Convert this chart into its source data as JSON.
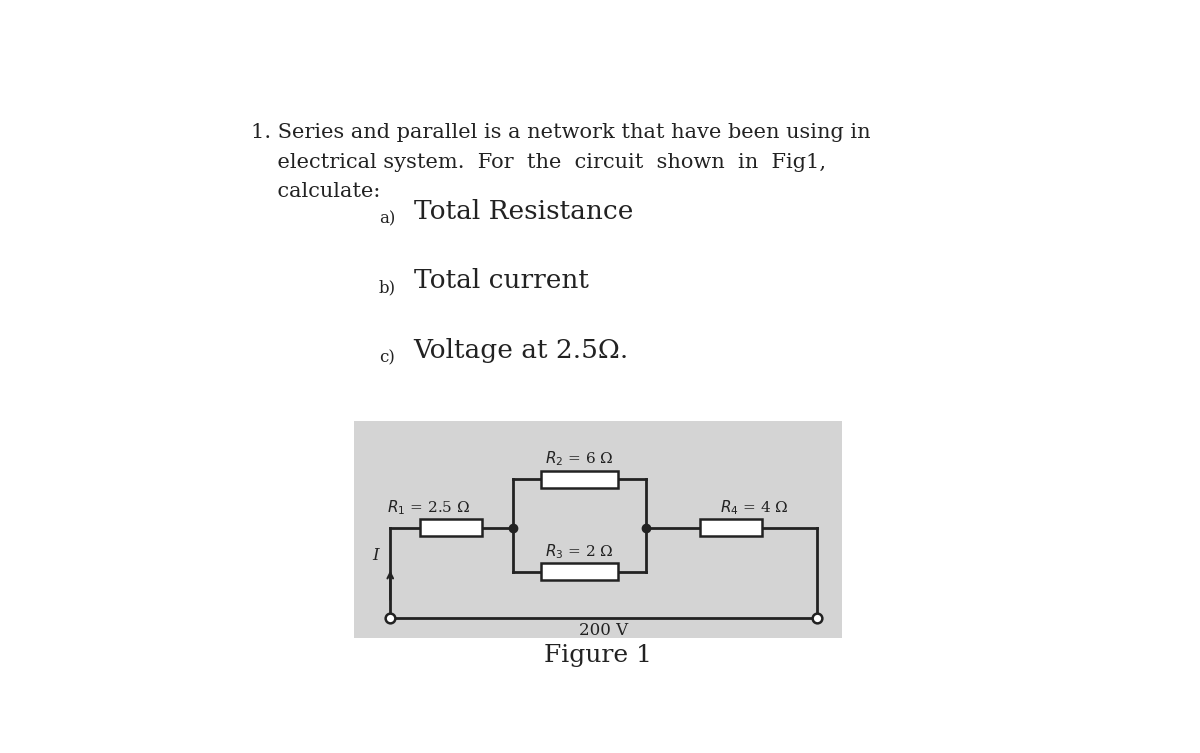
{
  "bg_color": "#ffffff",
  "circuit_bg": "#d4d4d4",
  "text_color": "#222222",
  "line_color": "#222222",
  "resistor_fill": "#ffffff",
  "resistor_edge": "#222222",
  "para_line1": "1. Series and parallel is a network that have been using in",
  "para_line2": "    electrical system.  For  the  circuit  shown  in  Fig1,",
  "para_line3": "    calculate:",
  "label_a_sub": "a)",
  "label_a_main": "Total Resistance",
  "label_b_sub": "b)",
  "label_b_main": "Total current",
  "label_c_sub": "c)",
  "label_c_main": "Voltage at 2.5Ω.",
  "figure_label": "Figure 1",
  "R1_label": "$\\mathit{R}_1$ = 2.5 Ω",
  "R2_label": "$\\mathit{R}_2$ = 6 Ω",
  "R3_label": "$\\mathit{R}_3$ = 2 Ω",
  "R4_label": "$\\mathit{R}_4$ = 4 Ω",
  "voltage_label": "200 V",
  "current_label": "I",
  "para_fontsize": 15,
  "sub_fontsize": 12,
  "main_fontsize": 19,
  "circuit_fontsize": 11,
  "figure_fontsize": 18
}
